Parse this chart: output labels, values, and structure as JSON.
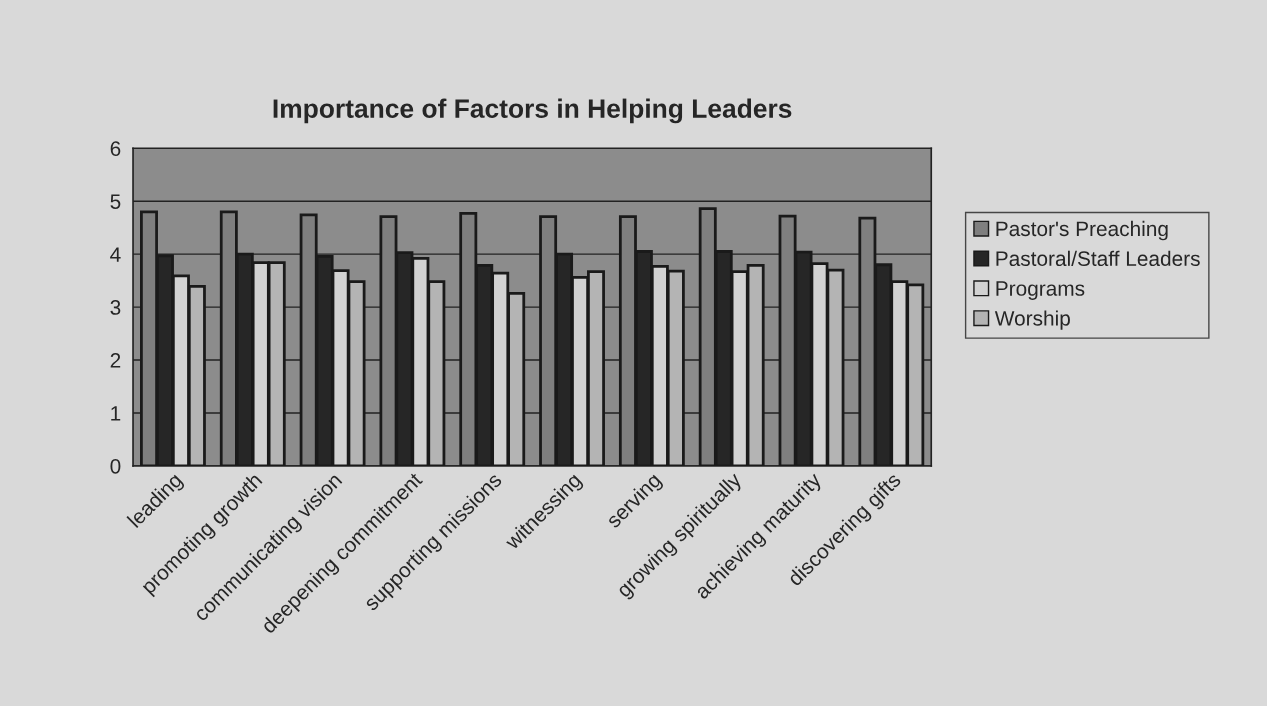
{
  "chart_data": {
    "type": "bar",
    "title": "Importance of Factors in Helping Leaders",
    "categories": [
      "leading",
      "promoting growth",
      "communicating vision",
      "deepening commitment",
      "supporting missions",
      "witnessing",
      "serving",
      "growing spiritually",
      "achieving maturity",
      "discovering gifts"
    ],
    "series": [
      {
        "name": "Pastor's Preaching",
        "color": "#7f7f7f",
        "values": [
          4.8,
          4.8,
          4.74,
          4.71,
          4.77,
          4.71,
          4.71,
          4.86,
          4.72,
          4.68
        ]
      },
      {
        "name": "Pastoral/Staff Leaders",
        "color": "#262626",
        "values": [
          3.97,
          4.0,
          3.96,
          4.03,
          3.79,
          4.0,
          4.05,
          4.05,
          4.04,
          3.8
        ]
      },
      {
        "name": "Programs",
        "color": "#d2d2d2",
        "values": [
          3.59,
          3.84,
          3.69,
          3.92,
          3.64,
          3.56,
          3.77,
          3.67,
          3.82,
          3.48
        ]
      },
      {
        "name": "Worship",
        "color": "#b4b4b4",
        "values": [
          3.39,
          3.84,
          3.48,
          3.48,
          3.26,
          3.67,
          3.68,
          3.79,
          3.7,
          3.42
        ]
      }
    ],
    "ylim": [
      0,
      6
    ],
    "yticks": [
      0,
      1,
      2,
      3,
      4,
      5,
      6
    ],
    "grid": "y",
    "legend": "right"
  }
}
